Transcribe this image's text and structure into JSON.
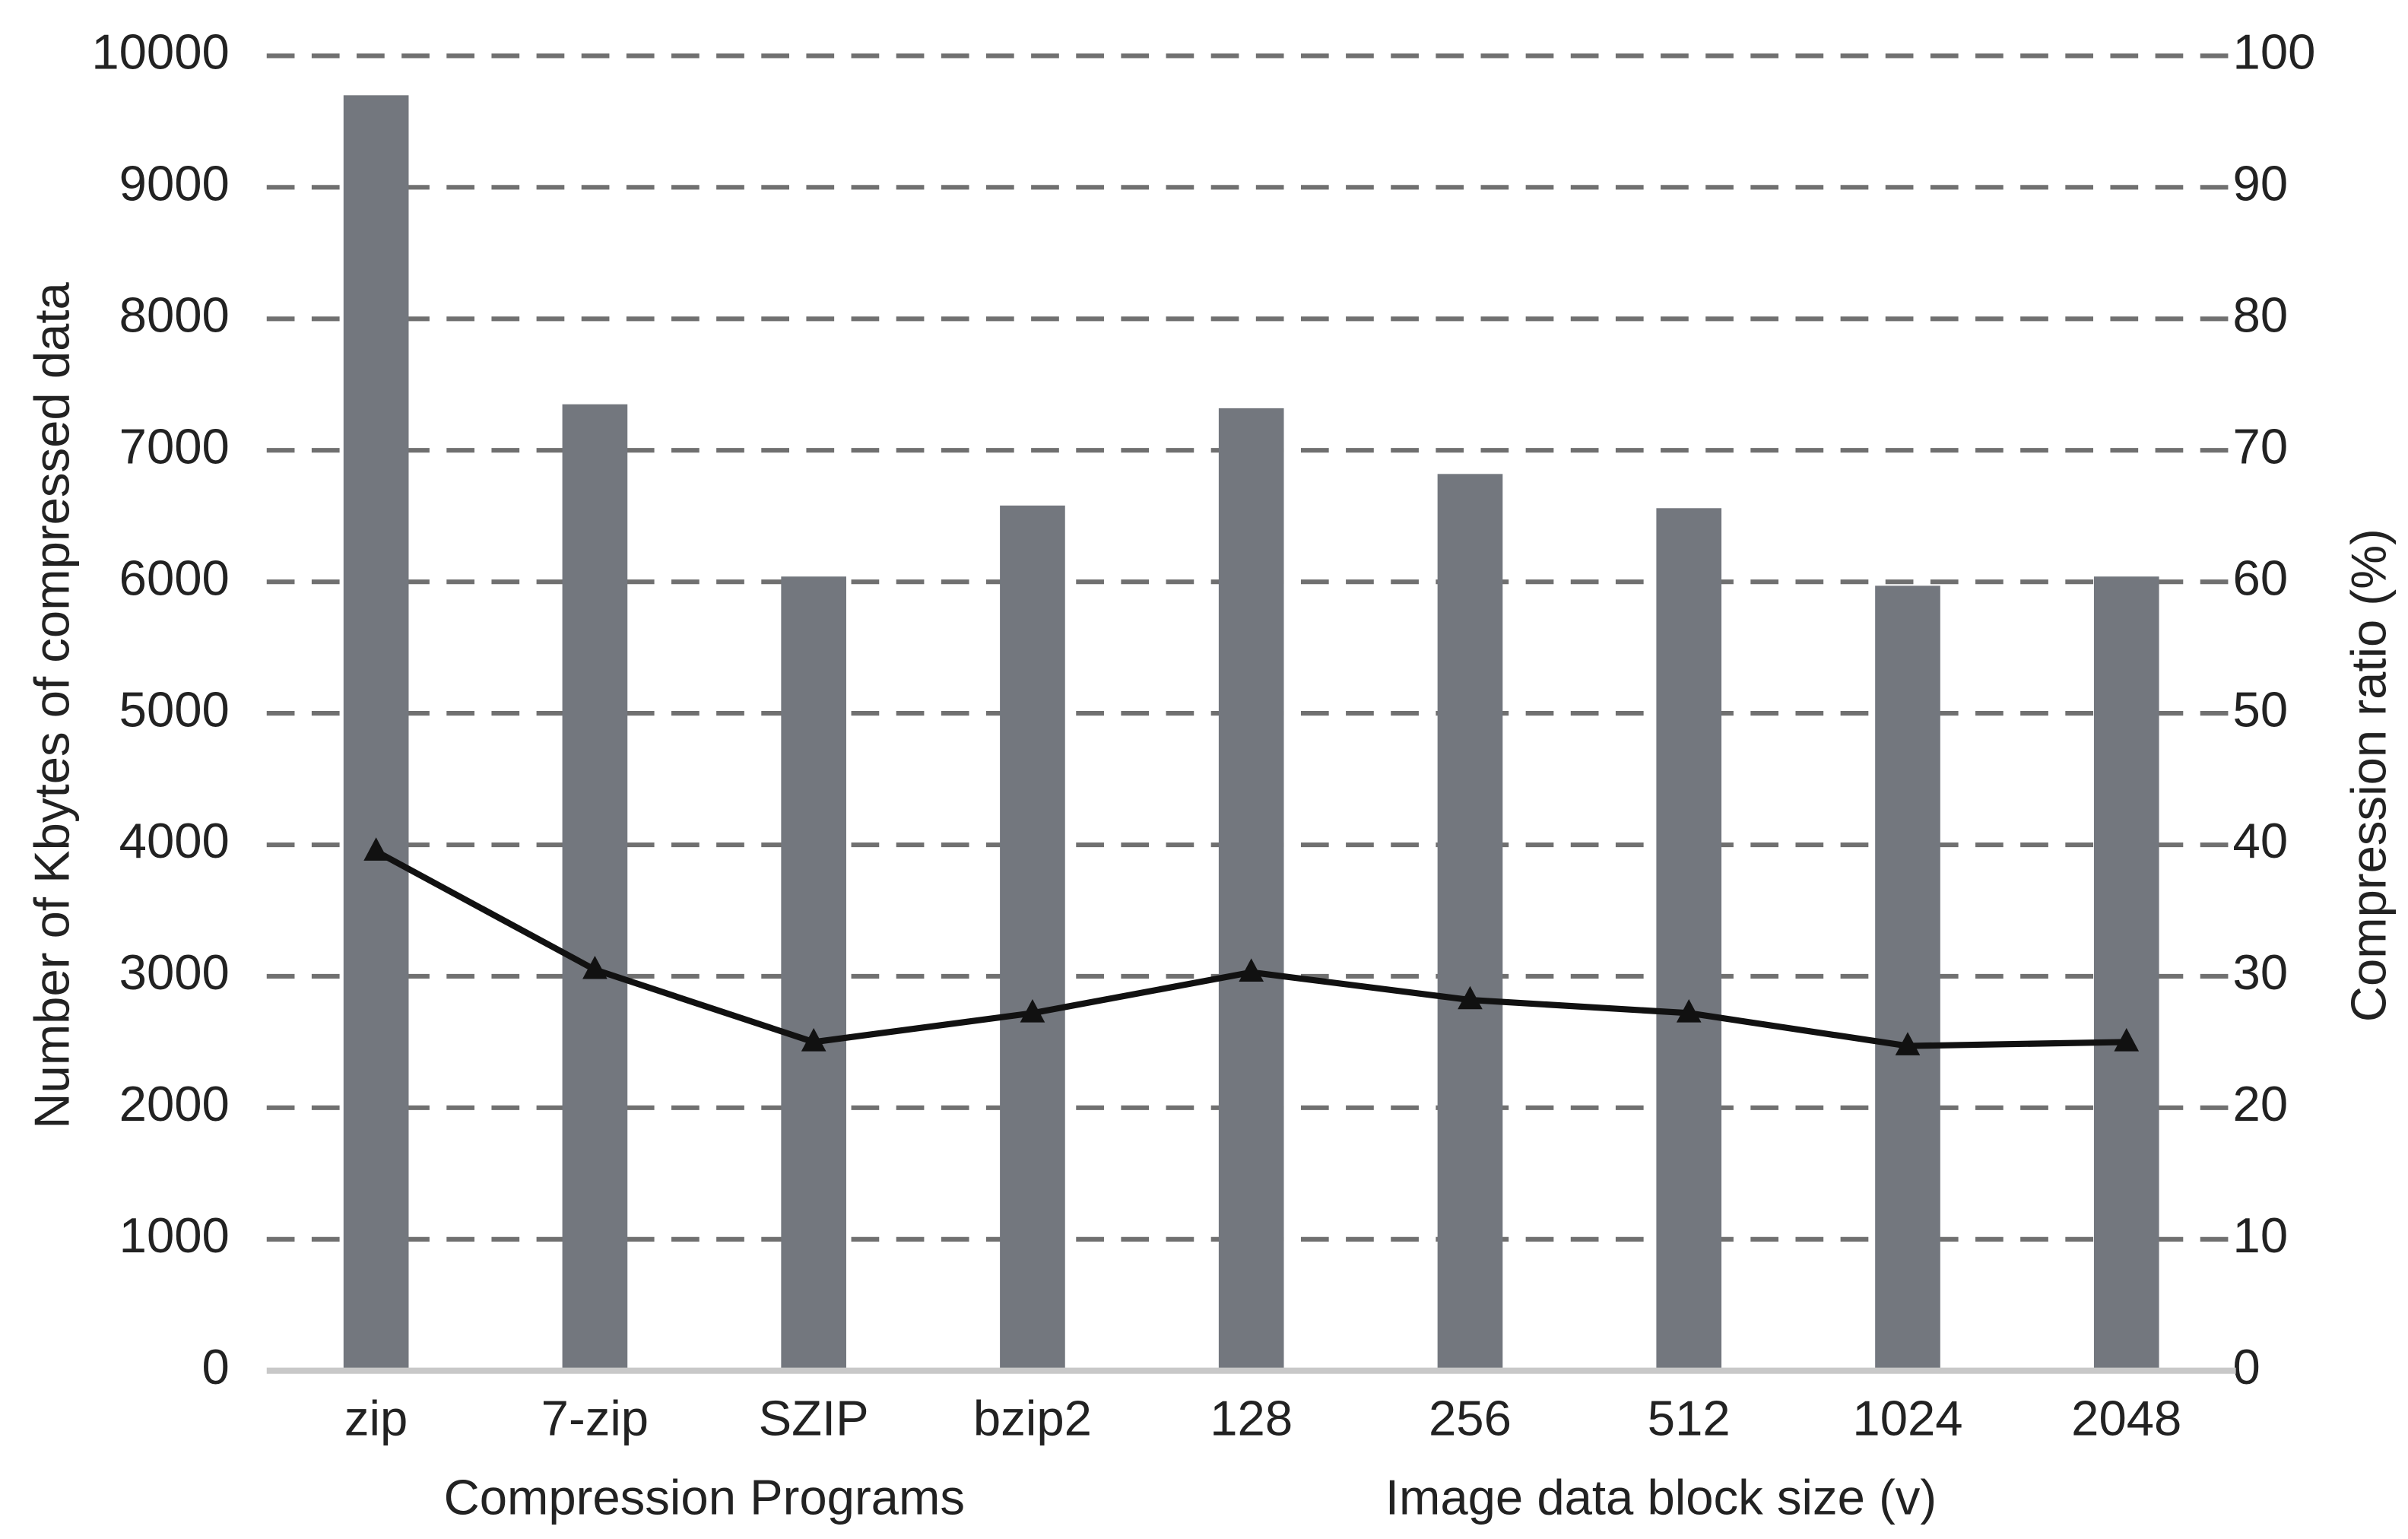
{
  "chart_data": {
    "type": "bar_line",
    "categories": [
      "zip",
      "7-zip",
      "SZIP",
      "bzip2",
      "128",
      "256",
      "512",
      "1024",
      "2048"
    ],
    "group_labels": [
      "Compression  Programs",
      "Image data block size (v)"
    ],
    "y_label": "Number of Kbytes of compressed data",
    "y2_label": "Compression ratio (%)",
    "series": [
      {
        "type": "bar",
        "color": "#73777e",
        "values": [
          9700,
          7350,
          6040,
          6580,
          7320,
          6820,
          6560,
          5970,
          6040
        ]
      },
      {
        "type": "line",
        "axis": "y2",
        "color": "#111111",
        "values": [
          39.5,
          30.5,
          25,
          27.2,
          30.3,
          28.2,
          27.2,
          24.7,
          25
        ]
      }
    ],
    "ylim": [
      0,
      10000
    ],
    "yticks": [
      0,
      1000,
      2000,
      3000,
      4000,
      5000,
      6000,
      7000,
      8000,
      9000,
      10000
    ],
    "y2lim": [
      0,
      100
    ],
    "y2ticks": [
      0,
      10,
      20,
      30,
      40,
      50,
      60,
      70,
      80,
      90,
      100
    ],
    "grid": true
  }
}
